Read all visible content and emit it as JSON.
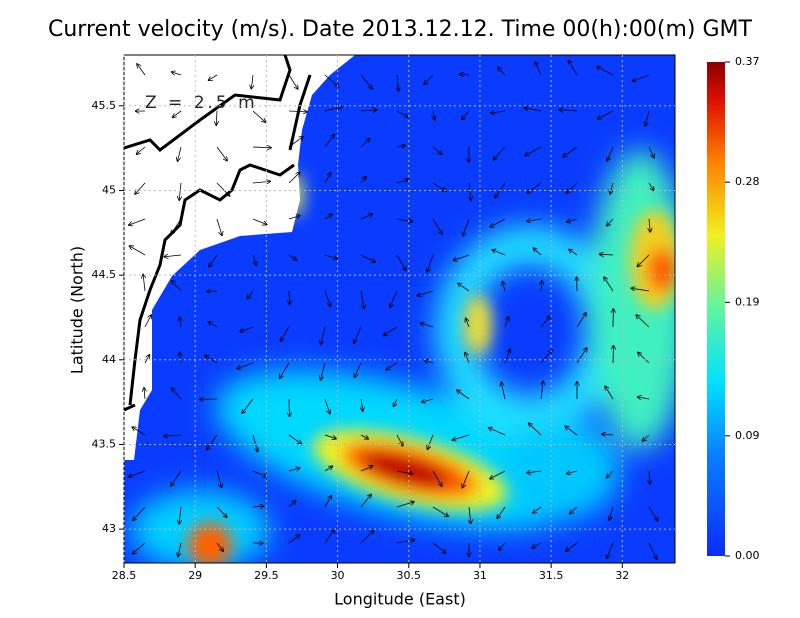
{
  "chart_data": {
    "type": "heatmap",
    "title": "Current velocity (m/s). Date 2013.12.12. Time 00(h):00(m) GMT",
    "annotation": "Z = 2.5 m",
    "x_label": "Longitude (East)",
    "y_label": "Latitude (North)",
    "xlim": [
      28.5,
      32.37
    ],
    "ylim": [
      42.8,
      45.8
    ],
    "xticks": [
      28.5,
      29,
      29.5,
      30,
      30.5,
      31,
      31.5,
      32
    ],
    "yticks": [
      43,
      43.5,
      44,
      44.5,
      45,
      45.5
    ],
    "grid": true,
    "colorbar": {
      "lim": [
        0,
        0.37
      ],
      "ticks": [
        {
          "value": 0,
          "label": "0.00"
        },
        0.09,
        0.19,
        0.28,
        0.37
      ]
    }
  }
}
